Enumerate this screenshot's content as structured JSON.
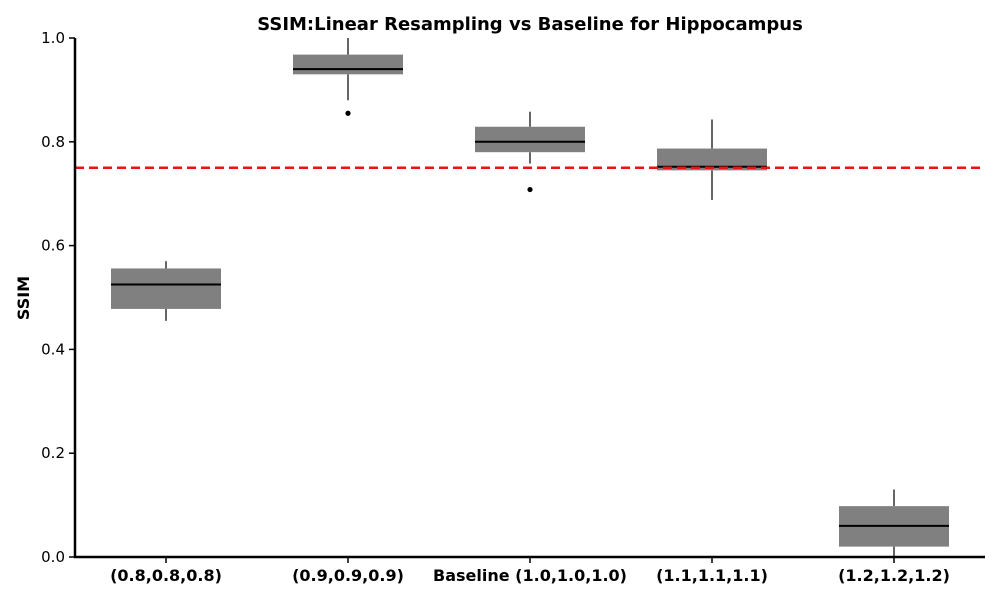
{
  "chart_data": {
    "type": "box",
    "title": "SSIM:Linear Resampling vs Baseline for Hippocampus",
    "xlabel": "",
    "ylabel": "SSIM",
    "ylim": [
      0.0,
      1.0
    ],
    "yticks": [
      0.0,
      0.2,
      0.4,
      0.6,
      0.8,
      1.0
    ],
    "ytick_labels": [
      "0.0",
      "0.2",
      "0.4",
      "0.6",
      "0.8",
      "1.0"
    ],
    "categories": [
      "(0.8,0.8,0.8)",
      "(0.9,0.9,0.9)",
      "Baseline (1.0,1.0,1.0)",
      "(1.1,1.1,1.1)",
      "(1.2,1.2,1.2)"
    ],
    "boxes": [
      {
        "whisker_low": 0.455,
        "q1": 0.478,
        "median": 0.525,
        "q3": 0.556,
        "whisker_high": 0.57,
        "outliers": []
      },
      {
        "whisker_low": 0.88,
        "q1": 0.93,
        "median": 0.94,
        "q3": 0.968,
        "whisker_high": 1.0,
        "outliers": [
          0.855
        ]
      },
      {
        "whisker_low": 0.758,
        "q1": 0.78,
        "median": 0.8,
        "q3": 0.829,
        "whisker_high": 0.858,
        "outliers": [
          0.708
        ]
      },
      {
        "whisker_low": 0.688,
        "q1": 0.745,
        "median": 0.752,
        "q3": 0.787,
        "whisker_high": 0.843,
        "outliers": []
      },
      {
        "whisker_low": 0.0,
        "q1": 0.02,
        "median": 0.06,
        "q3": 0.098,
        "whisker_high": 0.13,
        "outliers": []
      }
    ],
    "reference_line": {
      "y": 0.75,
      "style": "dashed"
    },
    "grid": false,
    "colors": {
      "box_fill": "#808080",
      "median": "#000000",
      "whisker": "#000000",
      "reference_line": "#ee1111",
      "axis": "#000000"
    }
  }
}
